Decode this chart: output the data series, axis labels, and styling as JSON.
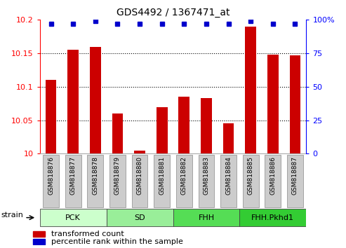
{
  "title": "GDS4492 / 1367471_at",
  "samples": [
    "GSM818876",
    "GSM818877",
    "GSM818878",
    "GSM818879",
    "GSM818880",
    "GSM818881",
    "GSM818882",
    "GSM818883",
    "GSM818884",
    "GSM818885",
    "GSM818886",
    "GSM818887"
  ],
  "red_values": [
    10.11,
    10.155,
    10.16,
    10.06,
    10.005,
    10.07,
    10.085,
    10.083,
    10.045,
    10.19,
    10.148,
    10.147
  ],
  "blue_values": [
    97,
    97,
    99,
    97,
    97,
    97,
    97,
    97,
    97,
    99,
    97,
    97
  ],
  "ylim_left": [
    10.0,
    10.2
  ],
  "ylim_right": [
    0,
    100
  ],
  "yticks_left": [
    10.0,
    10.05,
    10.1,
    10.15,
    10.2
  ],
  "yticks_right": [
    0,
    25,
    50,
    75,
    100
  ],
  "ytick_labels_left": [
    "10",
    "10.05",
    "10.1",
    "10.15",
    "10.2"
  ],
  "ytick_labels_right": [
    "0",
    "25",
    "50",
    "75",
    "100%"
  ],
  "groups": [
    {
      "label": "PCK",
      "start": 0,
      "end": 3,
      "color": "#ccffcc"
    },
    {
      "label": "SD",
      "start": 3,
      "end": 6,
      "color": "#99ee99"
    },
    {
      "label": "FHH",
      "start": 6,
      "end": 9,
      "color": "#55dd55"
    },
    {
      "label": "FHH.Pkhd1",
      "start": 9,
      "end": 12,
      "color": "#33cc33"
    }
  ],
  "strain_label": "strain",
  "bar_color": "#cc0000",
  "dot_color": "#0000cc",
  "legend_items": [
    {
      "color": "#cc0000",
      "label": "transformed count"
    },
    {
      "color": "#0000cc",
      "label": "percentile rank within the sample"
    }
  ],
  "bar_width": 0.5,
  "grid_yticks": [
    10.05,
    10.1,
    10.15
  ],
  "tick_label_box_color": "#cccccc",
  "tick_label_box_edge": "#999999"
}
